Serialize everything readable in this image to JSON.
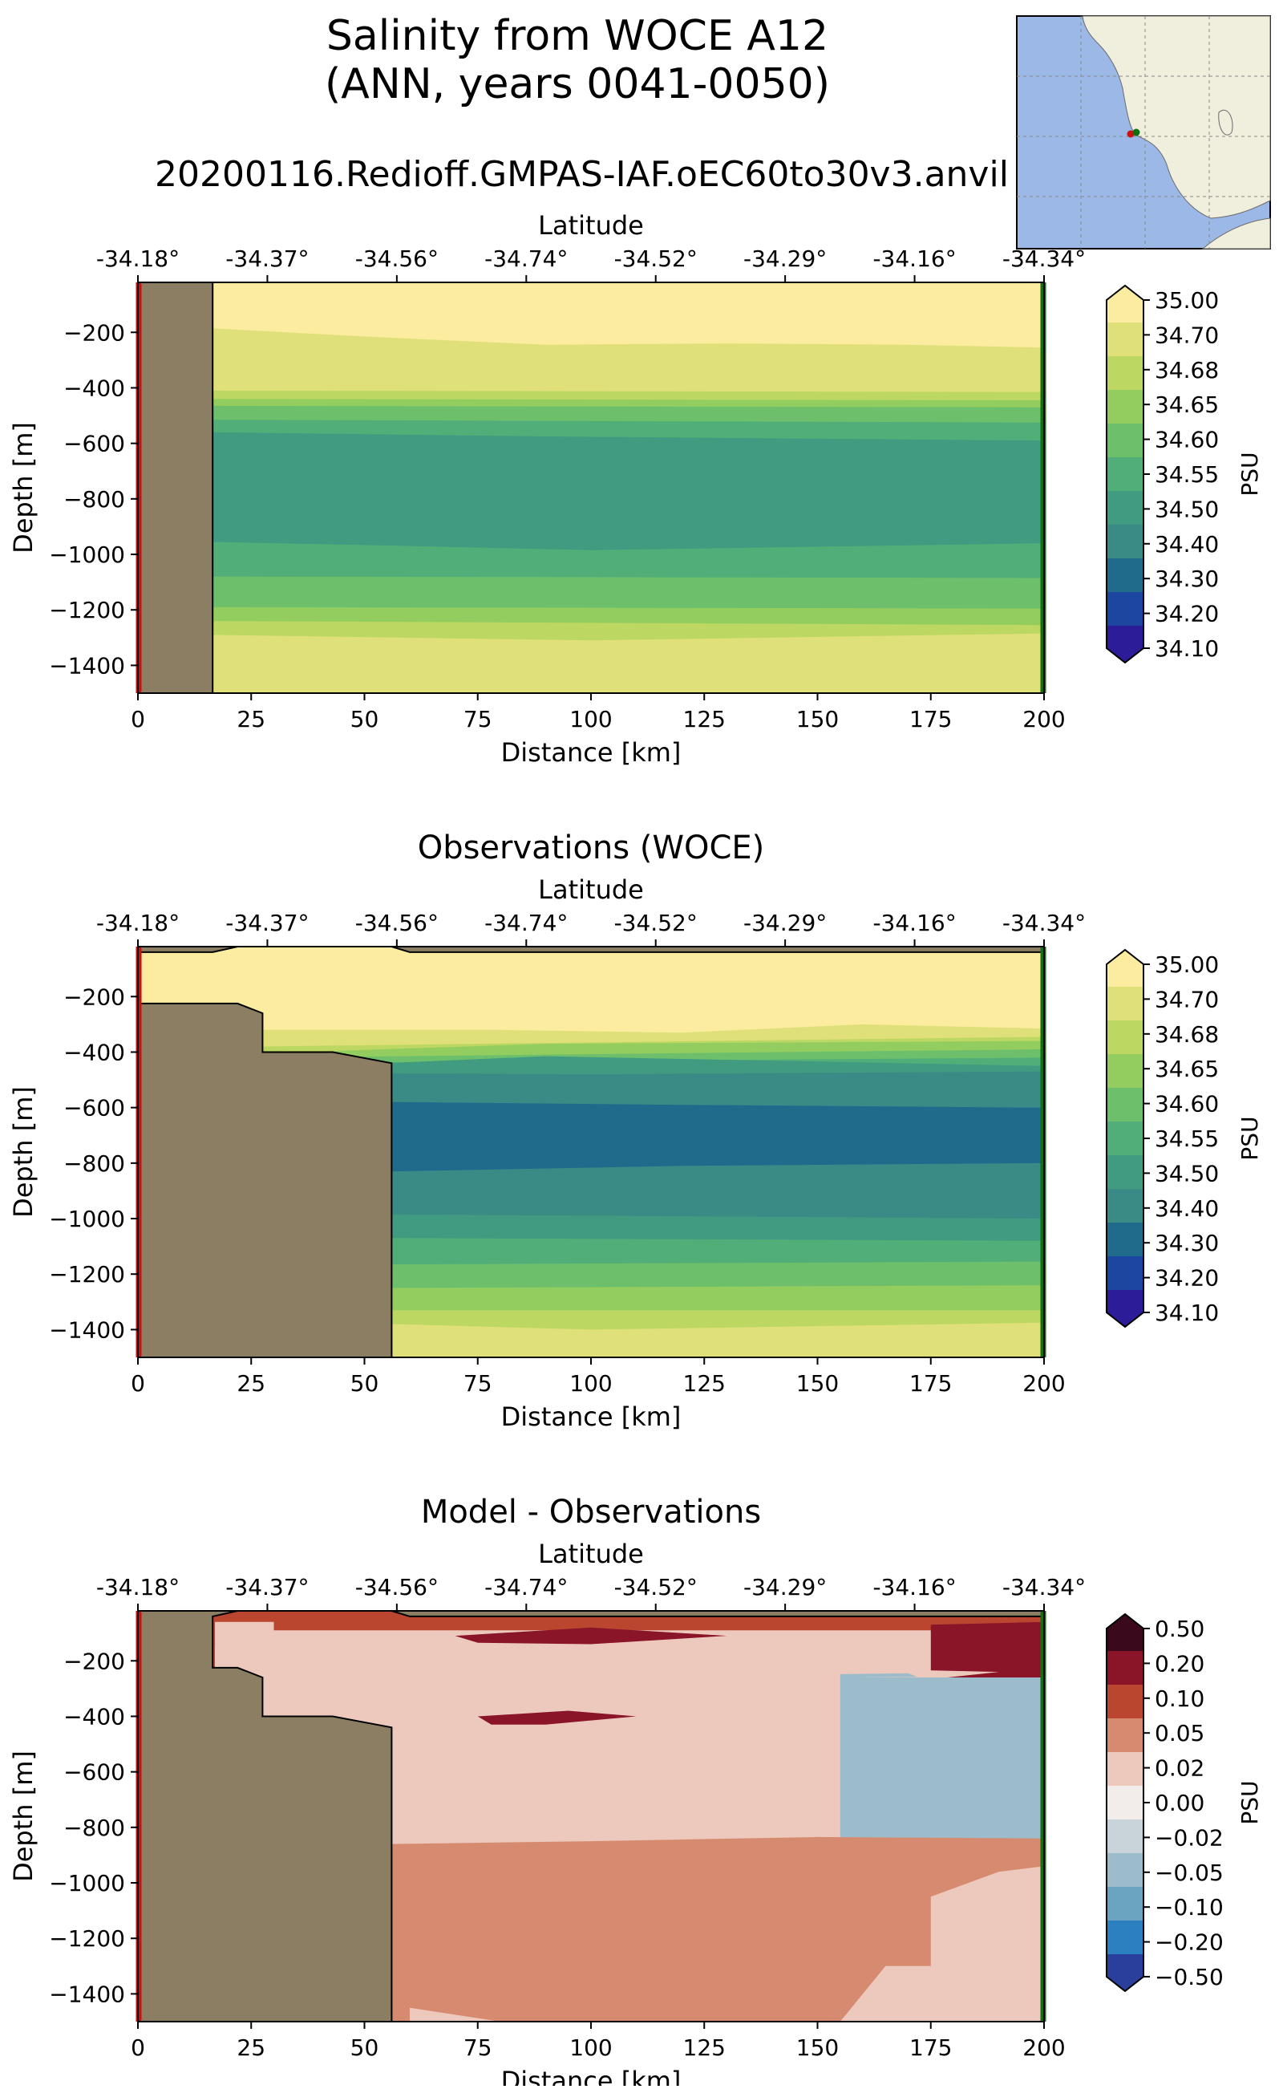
{
  "figure": {
    "title_line1": "Salinity from WOCE A12",
    "title_line2": "(ANN, years 0041-0050)",
    "run_name": "20200116.Redioff.GMPAS-IAF.oEC60to30v3.anvil"
  },
  "colors": {
    "land": "#8c7e63",
    "start_marker": "#cc1111",
    "end_marker": "#107010",
    "inset_ocean": "#9cb8e6",
    "inset_land": "#f0eedc"
  },
  "inset_map": {
    "icon": "southern-africa-locator-map"
  },
  "chart_data": [
    {
      "type": "contourf",
      "title": "",
      "xlabel": "Distance [km]",
      "ylabel": "Depth [m]",
      "top_axis_label": "Latitude",
      "xlim": [
        0,
        200
      ],
      "ylim": [
        -1500,
        -20
      ],
      "x_ticks": [
        "0",
        "25",
        "50",
        "75",
        "100",
        "125",
        "150",
        "175",
        "200"
      ],
      "y_ticks": [
        "−200",
        "−400",
        "−600",
        "−800",
        "−1000",
        "−1200",
        "−1400"
      ],
      "top_ticks": [
        "-34.18°",
        "-34.37°",
        "-34.56°",
        "-34.74°",
        "-34.52°",
        "-34.29°",
        "-34.16°",
        "-34.34°"
      ],
      "colorbar_label": "PSU",
      "colorbar_ticks": [
        "35.00",
        "34.70",
        "34.68",
        "34.65",
        "34.60",
        "34.55",
        "34.50",
        "34.40",
        "34.30",
        "34.20",
        "34.10"
      ],
      "colorbar_colors": [
        "#fbeca0",
        "#e0e07a",
        "#bcd862",
        "#93cd5f",
        "#6dbf6c",
        "#52ae78",
        "#409b80",
        "#3a8a86",
        "#206a8c",
        "#1c46a0",
        "#2c1c98"
      ],
      "land_polygon": [
        [
          0,
          -20
        ],
        [
          16.5,
          -20
        ],
        [
          16.5,
          -1500
        ],
        [
          0,
          -1500
        ]
      ],
      "layers": [
        {
          "color_index": 0,
          "boundary": [
            [
              0,
              -20
            ],
            [
              200,
              -20
            ]
          ]
        },
        {
          "color_index": 1,
          "boundary": [
            [
              16,
              -185
            ],
            [
              50,
              -215
            ],
            [
              90,
              -245
            ],
            [
              130,
              -240
            ],
            [
              170,
              -245
            ],
            [
              200,
              -255
            ]
          ]
        },
        {
          "color_index": 2,
          "boundary": [
            [
              16,
              -410
            ],
            [
              200,
              -415
            ]
          ]
        },
        {
          "color_index": 3,
          "boundary": [
            [
              16,
              -440
            ],
            [
              200,
              -445
            ]
          ]
        },
        {
          "color_index": 4,
          "boundary": [
            [
              16,
              -465
            ],
            [
              200,
              -470
            ]
          ]
        },
        {
          "color_index": 5,
          "boundary": [
            [
              16,
              -515
            ],
            [
              200,
              -525
            ]
          ]
        },
        {
          "color_index": 6,
          "boundary": [
            [
              16,
              -560
            ],
            [
              90,
              -575
            ],
            [
              200,
              -590
            ]
          ]
        },
        {
          "color_index": 5,
          "boundary": [
            [
              16,
              -955
            ],
            [
              60,
              -970
            ],
            [
              100,
              -985
            ],
            [
              200,
              -960
            ]
          ]
        },
        {
          "color_index": 4,
          "boundary": [
            [
              16,
              -1080
            ],
            [
              200,
              -1085
            ]
          ]
        },
        {
          "color_index": 3,
          "boundary": [
            [
              16,
              -1190
            ],
            [
              200,
              -1195
            ]
          ]
        },
        {
          "color_index": 2,
          "boundary": [
            [
              16,
              -1240
            ],
            [
              200,
              -1255
            ]
          ]
        },
        {
          "color_index": 1,
          "boundary": [
            [
              16,
              -1290
            ],
            [
              100,
              -1310
            ],
            [
              200,
              -1285
            ]
          ]
        }
      ]
    },
    {
      "type": "contourf",
      "title": "Observations (WOCE)",
      "xlabel": "Distance [km]",
      "ylabel": "Depth [m]",
      "top_axis_label": "Latitude",
      "xlim": [
        0,
        200
      ],
      "ylim": [
        -1500,
        -20
      ],
      "x_ticks": [
        "0",
        "25",
        "50",
        "75",
        "100",
        "125",
        "150",
        "175",
        "200"
      ],
      "y_ticks": [
        "−200",
        "−400",
        "−600",
        "−800",
        "−1000",
        "−1200",
        "−1400"
      ],
      "top_ticks": [
        "-34.18°",
        "-34.37°",
        "-34.56°",
        "-34.74°",
        "-34.52°",
        "-34.29°",
        "-34.16°",
        "-34.34°"
      ],
      "colorbar_label": "PSU",
      "colorbar_ticks": [
        "35.00",
        "34.70",
        "34.68",
        "34.65",
        "34.60",
        "34.55",
        "34.50",
        "34.40",
        "34.30",
        "34.20",
        "34.10"
      ],
      "colorbar_colors": [
        "#fbeca0",
        "#e0e07a",
        "#bcd862",
        "#93cd5f",
        "#6dbf6c",
        "#52ae78",
        "#409b80",
        "#3a8a86",
        "#206a8c",
        "#1c46a0",
        "#2c1c98"
      ],
      "land_polygon": [
        [
          0,
          -20
        ],
        [
          200,
          -20
        ],
        [
          200,
          -40
        ],
        [
          60,
          -40
        ],
        [
          56,
          -20
        ],
        [
          22,
          -20
        ],
        [
          16.5,
          -40
        ],
        [
          0,
          -40
        ],
        [
          0,
          -225
        ],
        [
          22,
          -225
        ],
        [
          27.5,
          -260
        ],
        [
          27.5,
          -400
        ],
        [
          43,
          -400
        ],
        [
          56,
          -440
        ],
        [
          56,
          -1500
        ],
        [
          0,
          -1500
        ]
      ],
      "layers": [
        {
          "color_index": 0,
          "boundary": [
            [
              0,
              -40
            ],
            [
              200,
              -40
            ]
          ]
        },
        {
          "color_index": 1,
          "boundary": [
            [
              27,
              -320
            ],
            [
              80,
              -320
            ],
            [
              120,
              -330
            ],
            [
              160,
              -300
            ],
            [
              200,
              -315
            ]
          ]
        },
        {
          "color_index": 2,
          "boundary": [
            [
              27,
              -380
            ],
            [
              200,
              -345
            ]
          ]
        },
        {
          "color_index": 3,
          "boundary": [
            [
              27,
              -405
            ],
            [
              90,
              -370
            ],
            [
              200,
              -360
            ]
          ]
        },
        {
          "color_index": 4,
          "boundary": [
            [
              27,
              -420
            ],
            [
              200,
              -390
            ]
          ]
        },
        {
          "color_index": 5,
          "boundary": [
            [
              27,
              -440
            ],
            [
              200,
              -420
            ]
          ]
        },
        {
          "color_index": 6,
          "boundary": [
            [
              27,
              -460
            ],
            [
              90,
              -415
            ],
            [
              200,
              -450
            ]
          ]
        },
        {
          "color_index": 7,
          "boundary": [
            [
              40,
              -475
            ],
            [
              100,
              -480
            ],
            [
              200,
              -470
            ]
          ]
        },
        {
          "color_index": 8,
          "boundary": [
            [
              56,
              -580
            ],
            [
              120,
              -590
            ],
            [
              195,
              -600
            ]
          ]
        },
        {
          "color_index": 7,
          "boundary": [
            [
              56,
              -830
            ],
            [
              120,
              -810
            ],
            [
              200,
              -800
            ]
          ]
        },
        {
          "color_index": 6,
          "boundary": [
            [
              56,
              -985
            ],
            [
              200,
              -1000
            ]
          ]
        },
        {
          "color_index": 5,
          "boundary": [
            [
              56,
              -1070
            ],
            [
              200,
              -1080
            ]
          ]
        },
        {
          "color_index": 4,
          "boundary": [
            [
              56,
              -1165
            ],
            [
              200,
              -1155
            ]
          ]
        },
        {
          "color_index": 3,
          "boundary": [
            [
              56,
              -1250
            ],
            [
              200,
              -1240
            ]
          ]
        },
        {
          "color_index": 2,
          "boundary": [
            [
              56,
              -1330
            ],
            [
              200,
              -1330
            ]
          ]
        },
        {
          "color_index": 1,
          "boundary": [
            [
              56,
              -1380
            ],
            [
              100,
              -1400
            ],
            [
              200,
              -1375
            ]
          ]
        }
      ]
    },
    {
      "type": "contourf",
      "title": "Model - Observations",
      "xlabel": "Distance [km]",
      "ylabel": "Depth [m]",
      "top_axis_label": "Latitude",
      "xlim": [
        0,
        200
      ],
      "ylim": [
        -1500,
        -20
      ],
      "x_ticks": [
        "0",
        "25",
        "50",
        "75",
        "100",
        "125",
        "150",
        "175",
        "200"
      ],
      "y_ticks": [
        "−200",
        "−400",
        "−600",
        "−800",
        "−1000",
        "−1200",
        "−1400"
      ],
      "top_ticks": [
        "-34.18°",
        "-34.37°",
        "-34.56°",
        "-34.74°",
        "-34.52°",
        "-34.29°",
        "-34.16°",
        "-34.34°"
      ],
      "colorbar_label": "PSU",
      "colorbar_ticks": [
        "0.50",
        "0.20",
        "0.10",
        "0.05",
        "0.02",
        "0.00",
        "−0.02",
        "−0.05",
        "−0.10",
        "−0.20",
        "−0.50"
      ],
      "colorbar_colors": [
        "#3a0a1c",
        "#8a1428",
        "#bb4630",
        "#d68b70",
        "#ecc9bc",
        "#f2ecea",
        "#c8d3da",
        "#9cbccc",
        "#6aa4c0",
        "#2c80bf",
        "#2a3e9c"
      ],
      "land_polygon": [
        [
          0,
          -20
        ],
        [
          200,
          -20
        ],
        [
          200,
          -40
        ],
        [
          60,
          -40
        ],
        [
          56,
          -20
        ],
        [
          22,
          -20
        ],
        [
          16.5,
          -40
        ],
        [
          16.5,
          -225
        ],
        [
          22,
          -225
        ],
        [
          27.5,
          -260
        ],
        [
          27.5,
          -400
        ],
        [
          43,
          -400
        ],
        [
          56,
          -440
        ],
        [
          56,
          -1500
        ],
        [
          0,
          -1500
        ]
      ],
      "layers": [
        {
          "color_index": 2,
          "boundary": [
            [
              0,
              -20
            ],
            [
              200,
              -20
            ]
          ]
        },
        {
          "color_index": 4,
          "boundary": [
            [
              17,
              -60
            ],
            [
              30,
              -60
            ],
            [
              30,
              -90
            ],
            [
              17,
              -90
            ]
          ]
        },
        {
          "color_index": 4,
          "boundary": [
            [
              17,
              -150
            ],
            [
              35,
              -150
            ],
            [
              45,
              -200
            ],
            [
              28,
              -230
            ],
            [
              17,
              -210
            ]
          ]
        },
        {
          "color_index": 1,
          "boundary": [
            [
              70,
              -110
            ],
            [
              100,
              -80
            ],
            [
              130,
              -110
            ],
            [
              100,
              -140
            ],
            [
              75,
              -135
            ]
          ]
        },
        {
          "color_index": 1,
          "boundary": [
            [
              175,
              -70
            ],
            [
              200,
              -60
            ],
            [
              200,
              -190
            ],
            [
              180,
              -180
            ]
          ]
        },
        {
          "color_index": 4,
          "boundary": [
            [
              110,
              -240
            ],
            [
              150,
              -225
            ],
            [
              190,
              -240
            ],
            [
              170,
              -275
            ],
            [
              120,
              -270
            ]
          ]
        },
        {
          "color_index": 7,
          "boundary": [
            [
              155,
              -248
            ],
            [
              170,
              -245
            ],
            [
              172,
              -258
            ],
            [
              158,
              -260
            ]
          ]
        },
        {
          "color_index": 1,
          "boundary": [
            [
              75,
              -400
            ],
            [
              95,
              -380
            ],
            [
              110,
              -400
            ],
            [
              90,
              -430
            ],
            [
              78,
              -430
            ]
          ]
        },
        {
          "color_index": 3,
          "boundary": [
            [
              56,
              -860
            ],
            [
              100,
              -850
            ],
            [
              150,
              -835
            ],
            [
              200,
              -840
            ],
            [
              200,
              -1500
            ],
            [
              56,
              -1500
            ]
          ]
        },
        {
          "color_index": 4,
          "boundary": [
            [
              175,
              -1050
            ],
            [
              190,
              -960
            ],
            [
              200,
              -940
            ],
            [
              200,
              -1500
            ],
            [
              155,
              -1500
            ],
            [
              165,
              -1300
            ]
          ]
        },
        {
          "color_index": 4,
          "boundary": [
            [
              60,
              -1450
            ],
            [
              80,
              -1500
            ],
            [
              60,
              -1500
            ]
          ]
        }
      ]
    }
  ]
}
